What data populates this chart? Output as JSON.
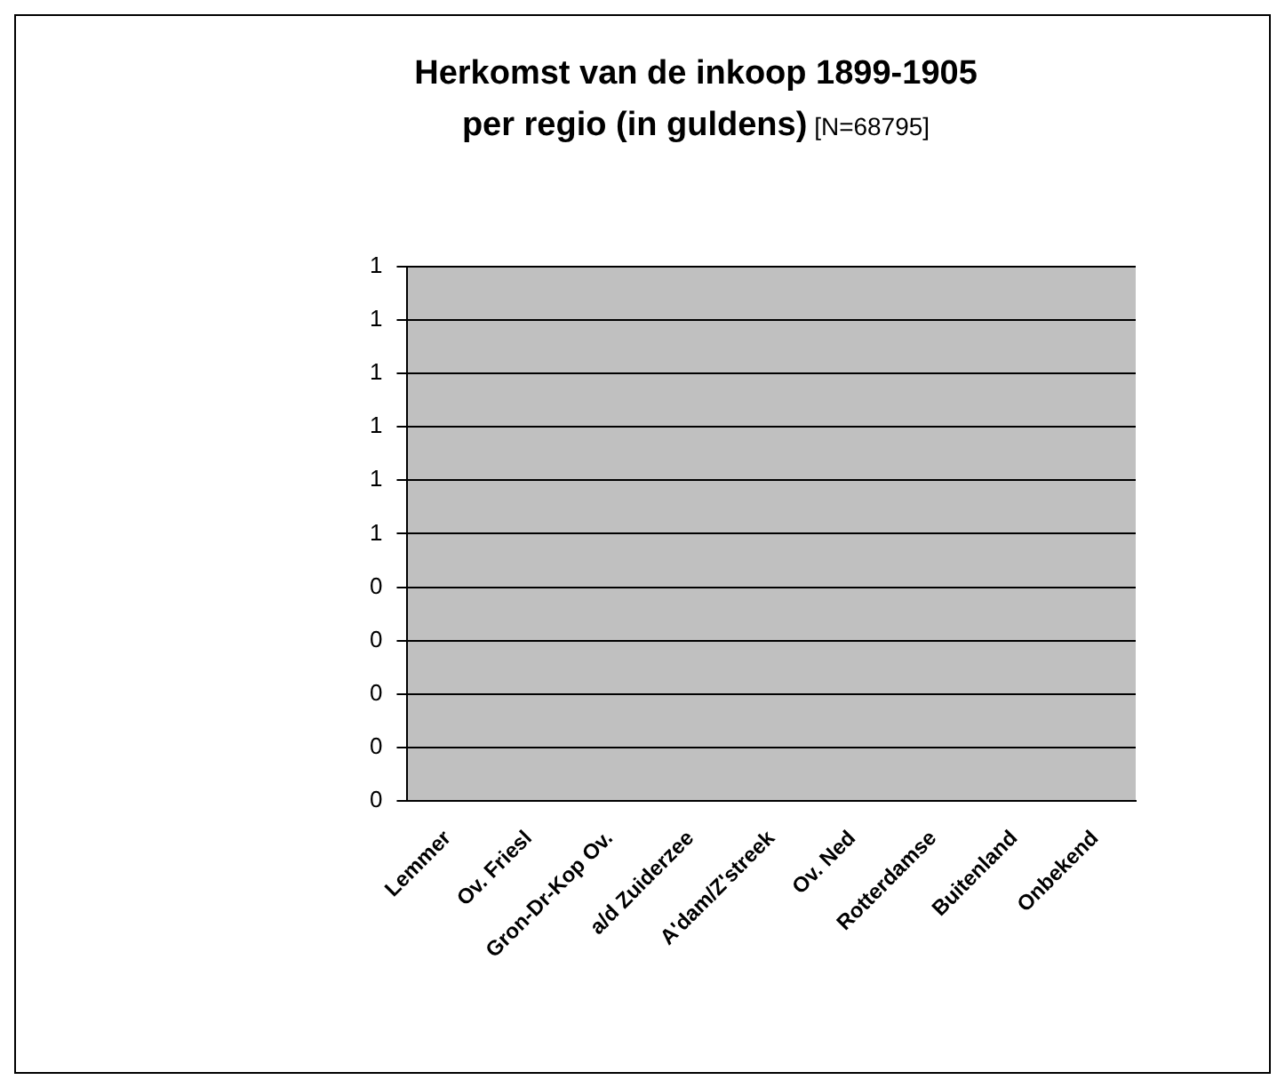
{
  "chart_data": {
    "type": "bar",
    "title": "Herkomst van de inkoop 1899-1905\nper regio (in guldens)",
    "subtitle": "[N=68795]",
    "categories": [
      "Lemmer",
      "Ov. Friesl",
      "Gron-Dr-Kop Ov.",
      "a/d Zuiderzee",
      "A'dam/Z'streek",
      "Ov. Ned",
      "Rotterdamse",
      "Buitenland",
      "Onbekend"
    ],
    "values": [
      0,
      0,
      0,
      0,
      0,
      0,
      0,
      0,
      0
    ],
    "ylim": [
      0,
      1
    ],
    "yticks": [
      0,
      {
        "value": 0.1,
        "label": "0"
      },
      {
        "value": 0.2,
        "label": "0"
      },
      {
        "value": 0.3,
        "label": "0"
      },
      {
        "value": 0.4,
        "label": "0"
      },
      {
        "value": 0.5,
        "label": "1"
      },
      {
        "value": 0.6,
        "label": "1"
      },
      {
        "value": 0.7,
        "label": "1"
      },
      {
        "value": 0.8,
        "label": "1"
      },
      {
        "value": 0.9,
        "label": "1"
      },
      1
    ],
    "grid": "y",
    "legend": false
  }
}
